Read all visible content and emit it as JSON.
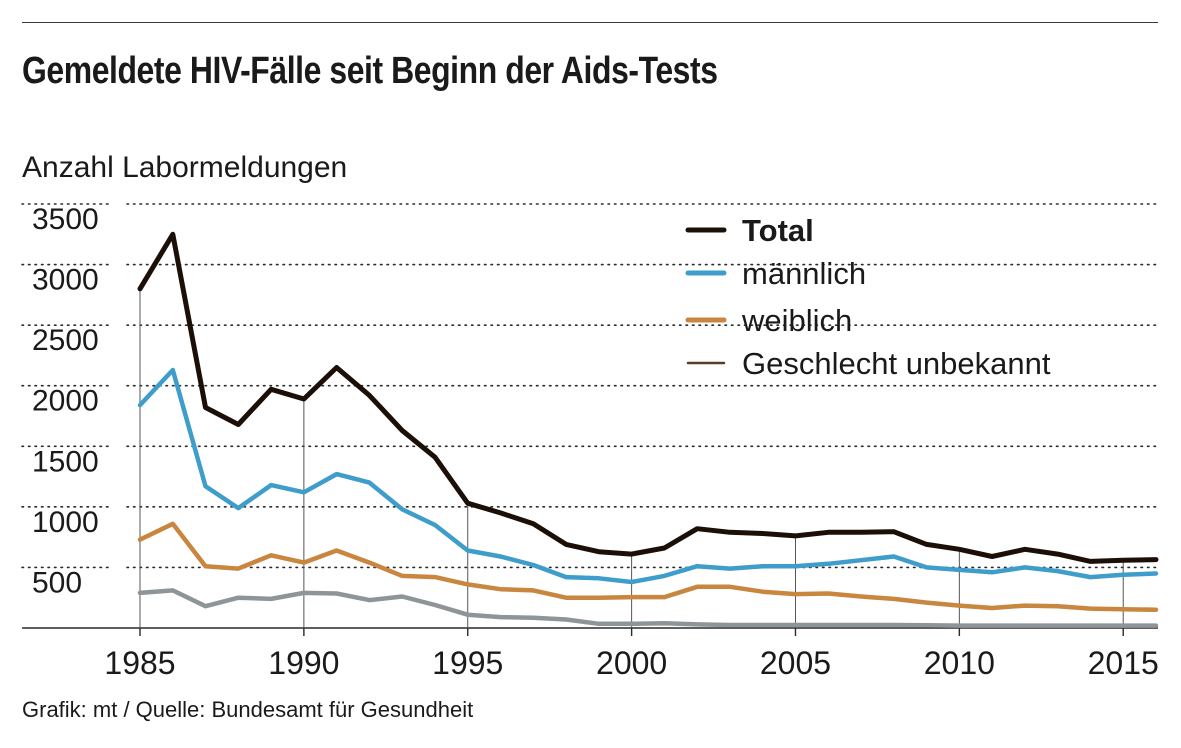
{
  "title": "Gemeldete HIV-Fälle seit Beginn der Aids-Tests",
  "source": "Grafik: mt / Quelle: Bundesamt für Gesundheit",
  "colors": {
    "total": "#1c0f08",
    "male": "#3f9dcb",
    "female": "#c9863f",
    "unknown": "#8e9599",
    "unknown_legend": "#5a3d22",
    "grid": "#2a2a2a",
    "axis": "#2a2a2a"
  },
  "chart_data": {
    "type": "line",
    "ylabel": "Anzahl Labormeldungen",
    "xlabel": "",
    "ylim": [
      0,
      3500
    ],
    "xlim": [
      1985,
      2016
    ],
    "yticks": [
      500,
      1000,
      1500,
      2000,
      2500,
      3000,
      3500
    ],
    "xticks": [
      1985,
      1990,
      1995,
      2000,
      2005,
      2010,
      2015
    ],
    "grid": "horizontal dotted",
    "legend_position": "top-right",
    "x": [
      1985,
      1986,
      1987,
      1988,
      1989,
      1990,
      1991,
      1992,
      1993,
      1994,
      1995,
      1996,
      1997,
      1998,
      1999,
      2000,
      2001,
      2002,
      2003,
      2004,
      2005,
      2006,
      2007,
      2008,
      2009,
      2010,
      2011,
      2012,
      2013,
      2014,
      2015,
      2016
    ],
    "series": [
      {
        "name": "Total",
        "key": "total",
        "bold": true,
        "values": [
          2800,
          3250,
          1820,
          1680,
          1970,
          1890,
          2150,
          1920,
          1630,
          1410,
          1030,
          950,
          860,
          690,
          630,
          610,
          660,
          820,
          790,
          780,
          760,
          790,
          790,
          795,
          690,
          650,
          590,
          650,
          610,
          550,
          560,
          565
        ]
      },
      {
        "name": "männlich",
        "key": "male",
        "bold": false,
        "values": [
          1840,
          2130,
          1170,
          990,
          1180,
          1120,
          1270,
          1200,
          980,
          850,
          640,
          590,
          520,
          420,
          410,
          380,
          430,
          510,
          490,
          510,
          510,
          530,
          560,
          590,
          500,
          480,
          460,
          500,
          470,
          420,
          440,
          450
        ]
      },
      {
        "name": "weiblich",
        "key": "female",
        "bold": false,
        "values": [
          730,
          860,
          510,
          490,
          600,
          540,
          640,
          540,
          430,
          420,
          360,
          320,
          310,
          250,
          250,
          255,
          255,
          340,
          340,
          300,
          280,
          285,
          260,
          240,
          210,
          185,
          165,
          185,
          180,
          160,
          155,
          150
        ]
      },
      {
        "name": "Geschlecht unbekannt",
        "key": "unknown",
        "bold": false,
        "values": [
          290,
          310,
          180,
          250,
          240,
          290,
          285,
          230,
          260,
          190,
          110,
          90,
          85,
          70,
          35,
          35,
          40,
          30,
          25,
          25,
          25,
          25,
          25,
          25,
          22,
          20,
          20,
          20,
          20,
          20,
          20,
          20
        ]
      }
    ]
  }
}
